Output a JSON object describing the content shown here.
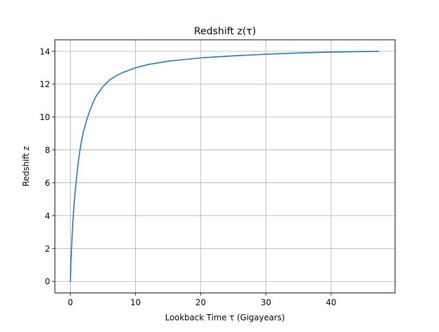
{
  "chart_data": {
    "type": "line",
    "title": "Redshift z(τ)",
    "xlabel": "Lookback Time τ (Gigayears)",
    "ylabel": "Redshift z",
    "xlim": [
      -2.37,
      49.8
    ],
    "ylim": [
      -0.7,
      14.7
    ],
    "x_ticks": [
      0,
      10,
      20,
      30,
      40
    ],
    "y_ticks": [
      0,
      2,
      4,
      6,
      8,
      10,
      12,
      14
    ],
    "grid": true,
    "legend": "none",
    "series": [
      {
        "color": "#1f77b4",
        "points": [
          [
            0,
            0
          ],
          [
            0.1,
            1.2
          ],
          [
            0.25,
            2.6
          ],
          [
            0.4,
            3.7
          ],
          [
            0.6,
            4.8
          ],
          [
            0.8,
            5.7
          ],
          [
            1.0,
            6.5
          ],
          [
            1.3,
            7.5
          ],
          [
            1.6,
            8.3
          ],
          [
            2.0,
            9.1
          ],
          [
            2.5,
            9.8
          ],
          [
            3.0,
            10.4
          ],
          [
            3.5,
            10.9
          ],
          [
            4.0,
            11.3
          ],
          [
            5.0,
            11.85
          ],
          [
            6.0,
            12.25
          ],
          [
            7.0,
            12.5
          ],
          [
            8.0,
            12.7
          ],
          [
            10.0,
            13.0
          ],
          [
            12.0,
            13.2
          ],
          [
            15.0,
            13.4
          ],
          [
            20.0,
            13.6
          ],
          [
            25.0,
            13.72
          ],
          [
            30.0,
            13.82
          ],
          [
            35.0,
            13.9
          ],
          [
            40.0,
            13.95
          ],
          [
            47.3,
            14.0
          ]
        ]
      }
    ]
  }
}
